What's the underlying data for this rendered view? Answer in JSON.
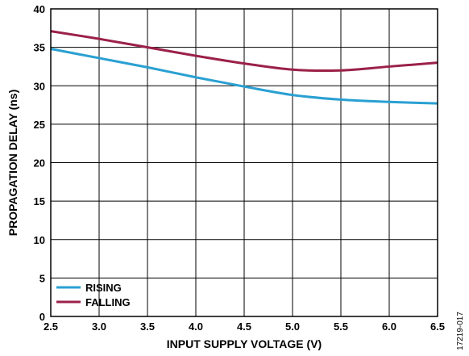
{
  "chart_data": {
    "type": "line",
    "xlabel": "INPUT SUPPLY VOLTAGE (V)",
    "ylabel": "PROPAGATION DELAY (ns)",
    "xlim": [
      2.5,
      6.5
    ],
    "ylim": [
      0,
      40
    ],
    "xticks": [
      2.5,
      3.0,
      3.5,
      4.0,
      4.5,
      5.0,
      5.5,
      6.0,
      6.5
    ],
    "xtick_labels": [
      "2.5",
      "3.0",
      "3.5",
      "4.0",
      "4.5",
      "5.0",
      "5.5",
      "6.0",
      "6.5"
    ],
    "yticks": [
      0,
      5,
      10,
      15,
      20,
      25,
      30,
      35,
      40
    ],
    "ytick_labels": [
      "0",
      "5",
      "10",
      "15",
      "20",
      "25",
      "30",
      "35",
      "40"
    ],
    "grid": true,
    "legend_position": "bottom-left",
    "series": [
      {
        "name": "RISING",
        "color": "#2aa0d2",
        "x": [
          2.5,
          3.0,
          3.5,
          4.0,
          4.5,
          5.0,
          5.5,
          6.0,
          6.5
        ],
        "y": [
          34.8,
          33.6,
          32.4,
          31.1,
          29.9,
          28.8,
          28.2,
          27.9,
          27.7
        ]
      },
      {
        "name": "FALLING",
        "color": "#9b2148",
        "x": [
          2.5,
          3.0,
          3.5,
          4.0,
          4.5,
          5.0,
          5.5,
          6.0,
          6.5
        ],
        "y": [
          37.1,
          36.1,
          35.0,
          33.9,
          32.9,
          32.1,
          32.0,
          32.5,
          33.0
        ]
      }
    ]
  },
  "figure_id": "17219-017"
}
